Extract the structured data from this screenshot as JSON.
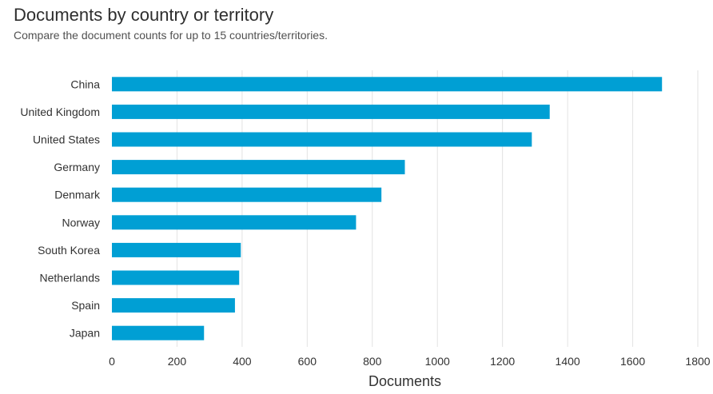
{
  "header": {
    "title": "Documents by country or territory",
    "subtitle": "Compare the document counts for up to 15 countries/territories."
  },
  "chart_data": {
    "type": "bar",
    "orientation": "horizontal",
    "categories": [
      "China",
      "United Kingdom",
      "United States",
      "Germany",
      "Denmark",
      "Norway",
      "South Korea",
      "Netherlands",
      "Spain",
      "Japan"
    ],
    "values": [
      1690,
      1345,
      1290,
      900,
      828,
      750,
      396,
      391,
      378,
      283
    ],
    "xlabel": "Documents",
    "ylabel": "",
    "xlim": [
      0,
      1800
    ],
    "xticks": [
      0,
      200,
      400,
      600,
      800,
      1000,
      1200,
      1400,
      1600,
      1800
    ],
    "grid": true,
    "bar_color": "#009fd4",
    "grid_color": "#e2e2e2"
  }
}
